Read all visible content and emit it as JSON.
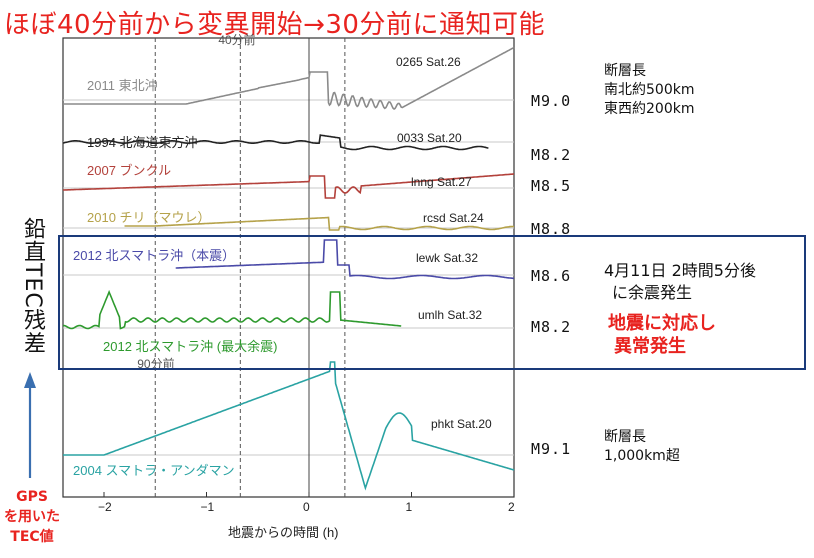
{
  "header": {
    "title": "ほぼ40分前から変異開始→30分前に通知可能"
  },
  "y_axis_label": "鉛直TEC残差",
  "gps_note": [
    "GPS",
    "を用いた",
    "TEC値"
  ],
  "colors": {
    "title_red": "#e8231f",
    "box_blue": "#1a3a7a",
    "arrow_blue": "#3a6fb0"
  },
  "chart_data": {
    "type": "line",
    "xlabel": "地震からの時間 (h)",
    "xlim": [
      -2.4,
      2.0
    ],
    "x_ticks": [
      -2,
      -1,
      0,
      1,
      2
    ],
    "x_tick_labels": [
      "−2",
      "−1",
      "0",
      "1",
      "2"
    ],
    "grid": "vertical dashed lines at 40分前 and 90分前, solid line at 0",
    "reference_lines": [
      {
        "label": "40分前",
        "x": -0.67
      },
      {
        "label": "90分前",
        "x": -1.5
      }
    ],
    "series": [
      {
        "name": "2011 東北沖",
        "station": "0265 Sat.26",
        "magnitude": "M9.0",
        "color": "#8a8a8a"
      },
      {
        "name": "1994 北海道東方沖",
        "station": "0033 Sat.20",
        "magnitude": "M8.2",
        "color": "#222222"
      },
      {
        "name": "2007 ブンクル",
        "station": "lnng Sat.27",
        "magnitude": "M8.5",
        "color": "#b3413b"
      },
      {
        "name": "2010 チリ（マウレ）",
        "station": "rcsd Sat.24",
        "magnitude": "M8.8",
        "color": "#b5a24a"
      },
      {
        "name": "2012 北スマトラ沖（本震）",
        "station": "lewk Sat.32",
        "magnitude": "M8.6",
        "color": "#4a4aa8"
      },
      {
        "name": "2012 北スマトラ沖 (最大余震)",
        "station": "umlh Sat.32",
        "magnitude": "M8.2",
        "color": "#2e9a2e"
      },
      {
        "name": "2004 スマトラ・アンダマン",
        "station": "phkt Sat.20",
        "magnitude": "M9.1",
        "color": "#2aa3a3"
      }
    ]
  },
  "magnitudes": [
    "M9.0",
    "M8.2",
    "M8.5",
    "M8.8",
    "M8.6",
    "M8.2",
    "M9.1"
  ],
  "notes": {
    "tohoku_fault": [
      "断層長",
      "南北約500km",
      "東西約200km"
    ],
    "sumatra_fault": [
      "断層長",
      "1,000km超"
    ],
    "aftershock_info": [
      "4月11日 2時間5分後",
      "に余震発生"
    ],
    "red_message": [
      "地震に対応し",
      "異常発生"
    ]
  }
}
